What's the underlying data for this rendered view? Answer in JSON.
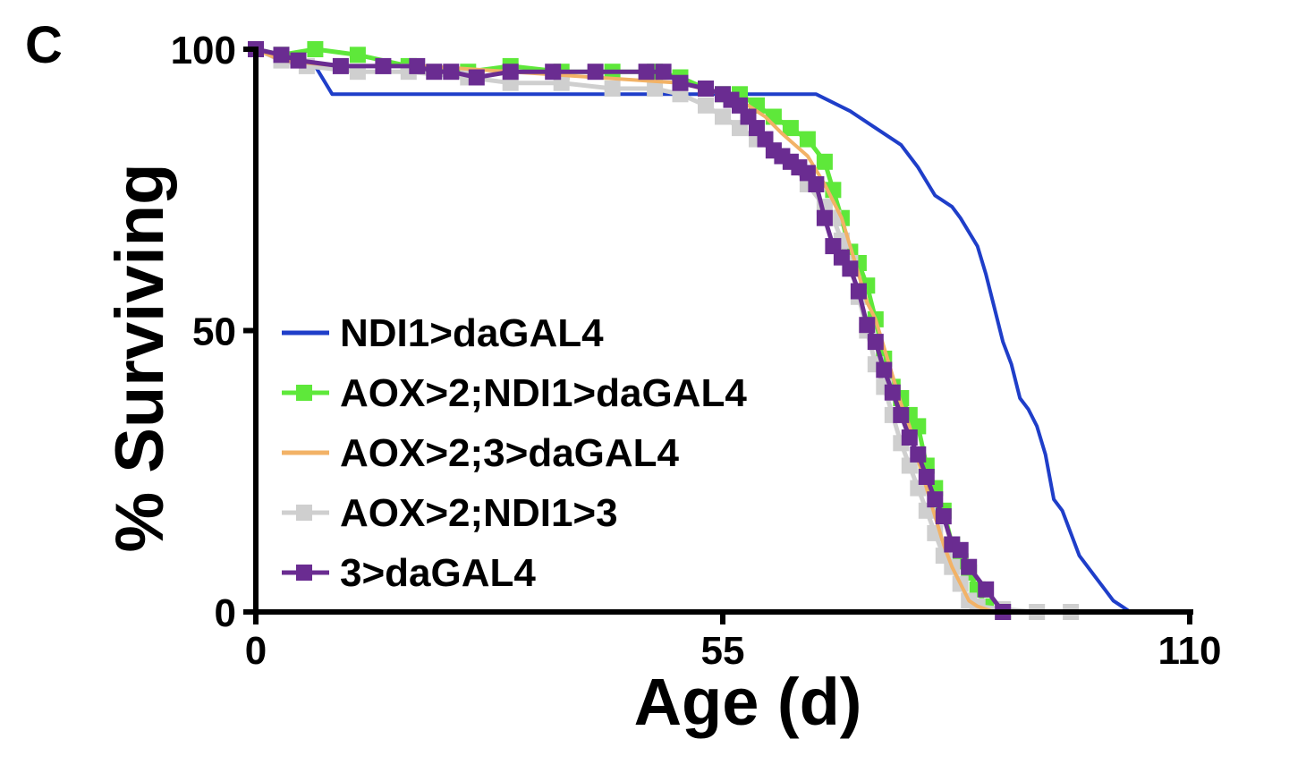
{
  "panel_label": "C",
  "chart_data": {
    "type": "line",
    "subtype": "kaplan-meier survival curves",
    "title": "",
    "xlabel": "Age (d)",
    "ylabel": "% Surviving",
    "xlim": [
      0,
      110
    ],
    "ylim": [
      0,
      100
    ],
    "xticks": [
      0,
      55,
      110
    ],
    "xtick_labels": [
      "0",
      "55",
      "110"
    ],
    "yticks": [
      0,
      50,
      100
    ],
    "ytick_labels": [
      "0",
      "50",
      "100"
    ],
    "grid": false,
    "legend_position": "center-left",
    "series": [
      {
        "name": "NDI1>daGAL4",
        "color": "#1f3ec9",
        "marker": "none",
        "x": [
          0,
          4,
          7,
          9,
          20,
          40,
          50,
          55,
          60,
          66,
          70,
          73,
          76,
          78,
          80,
          82,
          83,
          85,
          86,
          87,
          88,
          89,
          90,
          91,
          92,
          93,
          94,
          95,
          96,
          97,
          98,
          99,
          100,
          101,
          102,
          103
        ],
        "y": [
          100,
          98,
          97,
          92,
          92,
          92,
          92,
          92,
          92,
          92,
          89,
          86,
          83,
          79,
          74,
          72,
          70,
          65,
          60,
          54,
          48,
          44,
          38,
          36,
          33,
          28,
          20,
          18,
          14,
          10,
          8,
          6,
          4,
          2,
          1,
          0
        ]
      },
      {
        "name": "AOX>2;NDI1>daGAL4",
        "color": "#5ee83a",
        "marker": "square",
        "x": [
          0,
          3,
          7,
          12,
          18,
          25,
          30,
          36,
          42,
          47,
          50,
          53,
          55,
          57,
          59,
          61,
          63,
          65,
          67,
          68,
          69,
          70,
          71,
          72,
          73,
          74,
          75,
          76,
          77,
          78,
          79,
          80,
          81,
          82,
          83,
          84,
          85,
          86,
          88
        ],
        "y": [
          100,
          99,
          100,
          99,
          97,
          96,
          97,
          96,
          96,
          96,
          95,
          93,
          92,
          92,
          90,
          88,
          86,
          84,
          80,
          75,
          70,
          64,
          62,
          58,
          52,
          45,
          40,
          38,
          35,
          33,
          26,
          22,
          18,
          12,
          9,
          7,
          4,
          1,
          0
        ]
      },
      {
        "name": "AOX>2;3>daGAL4",
        "color": "#f2b266",
        "marker": "none",
        "x": [
          0,
          3,
          10,
          20,
          30,
          40,
          50,
          55,
          58,
          60,
          62,
          65,
          67,
          69,
          70,
          71,
          72,
          73,
          74,
          75,
          76,
          77,
          78,
          79,
          80,
          81,
          82,
          83,
          84,
          85,
          86,
          87
        ],
        "y": [
          100,
          98,
          97,
          97,
          96,
          95,
          94,
          92,
          90,
          88,
          85,
          81,
          76,
          70,
          65,
          60,
          55,
          52,
          47,
          42,
          37,
          33,
          27,
          22,
          17,
          12,
          8,
          5,
          2,
          1,
          0.5,
          0
        ]
      },
      {
        "name": "AOX>2;NDI1>3",
        "color": "#cfcfcf",
        "marker": "square",
        "x": [
          0,
          3,
          6,
          12,
          18,
          25,
          30,
          36,
          42,
          47,
          50,
          53,
          55,
          57,
          59,
          61,
          63,
          65,
          67,
          68,
          69,
          70,
          71,
          72,
          73,
          74,
          75,
          76,
          77,
          78,
          79,
          80,
          81,
          82,
          83,
          84,
          85,
          88,
          92,
          96
        ],
        "y": [
          100,
          98,
          97,
          96,
          96,
          95,
          94,
          94,
          93,
          93,
          92,
          90,
          88,
          86,
          84,
          82,
          80,
          76,
          72,
          70,
          66,
          62,
          56,
          50,
          44,
          40,
          35,
          30,
          26,
          22,
          18,
          14,
          10,
          8,
          5,
          2,
          1,
          0.5,
          0,
          0
        ]
      },
      {
        "name": "3>daGAL4",
        "color": "#6a2c91",
        "marker": "square",
        "x": [
          0,
          3,
          5,
          10,
          15,
          19,
          21,
          23,
          26,
          30,
          35,
          40,
          46,
          48,
          50,
          53,
          55,
          56,
          57,
          58,
          59,
          60,
          61,
          62,
          63,
          64,
          65,
          66,
          67,
          68,
          69,
          70,
          71,
          72,
          73,
          74,
          75,
          76,
          77,
          78,
          79,
          80,
          81,
          82,
          83,
          84,
          86,
          88
        ],
        "y": [
          100,
          99,
          98,
          97,
          97,
          97,
          96,
          96,
          95,
          96,
          96,
          96,
          96,
          96,
          94,
          93,
          92,
          91,
          90,
          88,
          86,
          84,
          82,
          81,
          80,
          79,
          78,
          76,
          70,
          65,
          63,
          61,
          57,
          51,
          48,
          43,
          39,
          35,
          31,
          28,
          24,
          20,
          17,
          12,
          11,
          8,
          4,
          0
        ]
      }
    ]
  }
}
